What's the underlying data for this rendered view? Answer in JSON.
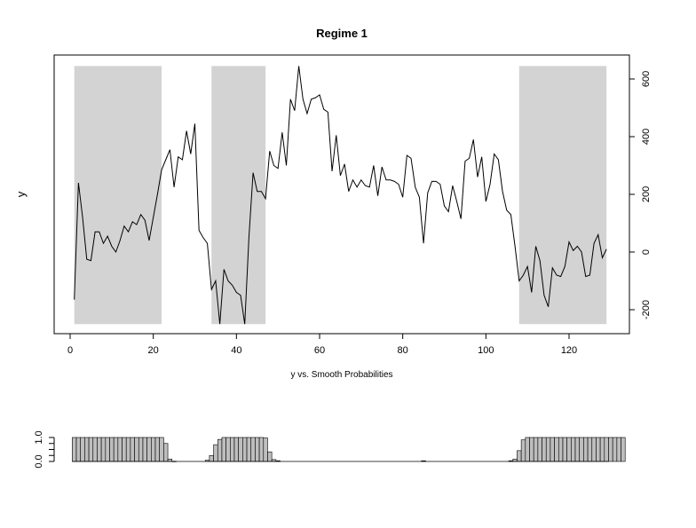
{
  "chart_data": [
    {
      "type": "line",
      "title": "Regime 1",
      "xlabel": "y vs. Smooth Probabilities",
      "ylabel": "y",
      "xlim": [
        1,
        129
      ],
      "ylim": [
        -250,
        650
      ],
      "x_ticks": [
        0,
        20,
        40,
        60,
        80,
        100,
        120
      ],
      "y_ticks_right": [
        -200,
        0,
        200,
        400,
        600
      ],
      "y_axis_side": "right",
      "grid": false,
      "line_color": "#000000",
      "shade_color": "#d3d3d3",
      "shaded_regions": [
        [
          1,
          22
        ],
        [
          34,
          47
        ],
        [
          108,
          129
        ]
      ],
      "series": [
        {
          "values": [
            -165,
            240,
            120,
            -25,
            -30,
            70,
            70,
            30,
            55,
            20,
            0,
            40,
            90,
            70,
            105,
            95,
            130,
            110,
            40,
            120,
            200,
            285,
            320,
            355,
            225,
            330,
            320,
            420,
            340,
            445,
            75,
            50,
            30,
            -130,
            -100,
            -250,
            -60,
            -100,
            -115,
            -140,
            -150,
            -250,
            50,
            275,
            210,
            210,
            185,
            350,
            300,
            290,
            415,
            300,
            530,
            490,
            645,
            530,
            480,
            530,
            535,
            545,
            495,
            485,
            280,
            405,
            265,
            305,
            210,
            250,
            225,
            250,
            230,
            225,
            300,
            195,
            295,
            250,
            250,
            245,
            235,
            190,
            335,
            325,
            225,
            190,
            30,
            205,
            245,
            245,
            235,
            160,
            140,
            230,
            175,
            115,
            315,
            325,
            390,
            260,
            330,
            175,
            235,
            340,
            320,
            210,
            145,
            130,
            20,
            -100,
            -80,
            -50,
            -140,
            20,
            -30,
            -150,
            -190,
            -55,
            -80,
            -85,
            -50,
            35,
            5,
            20,
            0,
            -85,
            -80,
            30,
            60,
            -20,
            10
          ]
        }
      ]
    },
    {
      "type": "bar",
      "title": "",
      "xlim": [
        1,
        129
      ],
      "ylim": [
        0,
        1
      ],
      "y_ticks": [
        "0.0",
        "1.0"
      ],
      "bar_color": "#bebebe",
      "series": [
        {
          "values": [
            1,
            1,
            1,
            1,
            1,
            1,
            1,
            1,
            1,
            1,
            1,
            1,
            1,
            1,
            1,
            1,
            1,
            1,
            1,
            1,
            1,
            1,
            0.75,
            0.1,
            0.01,
            0,
            0,
            0,
            0,
            0,
            0,
            0,
            0.05,
            0.25,
            0.7,
            0.92,
            1,
            1,
            1,
            1,
            1,
            1,
            1,
            1,
            1,
            1,
            0.98,
            0.4,
            0.08,
            0.03,
            0,
            0,
            0,
            0,
            0,
            0,
            0,
            0,
            0,
            0,
            0,
            0,
            0,
            0,
            0,
            0,
            0,
            0,
            0,
            0,
            0,
            0,
            0,
            0,
            0,
            0,
            0,
            0,
            0,
            0,
            0,
            0,
            0,
            0,
            0.03,
            0,
            0,
            0,
            0,
            0,
            0,
            0,
            0,
            0,
            0,
            0,
            0,
            0,
            0,
            0,
            0,
            0,
            0,
            0,
            0,
            0.03,
            0.1,
            0.45,
            0.9,
            1,
            1,
            1,
            1,
            1,
            1,
            1,
            1,
            1,
            1,
            1,
            1,
            1,
            1,
            1,
            1,
            1,
            1,
            1,
            1,
            1,
            1,
            1,
            1
          ]
        }
      ]
    }
  ]
}
